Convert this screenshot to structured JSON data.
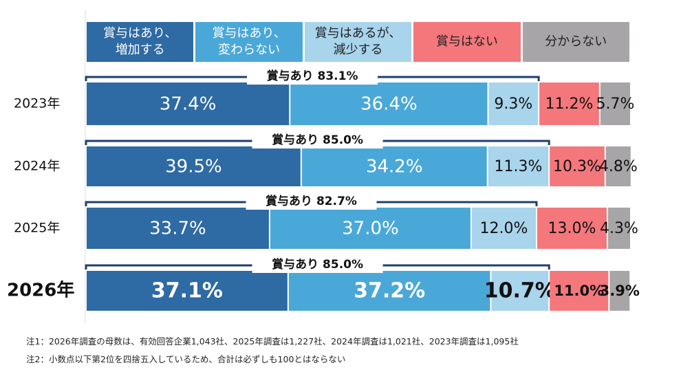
{
  "chart_data": {
    "type": "stacked-bar-horizontal",
    "categories": [
      "2023年",
      "2024年",
      "2025年",
      "2026年"
    ],
    "xlim": [
      0,
      100
    ],
    "series": [
      {
        "name": "賞与はあり、\n増加する",
        "color": "#2e6aa3",
        "values": [
          37.4,
          39.5,
          33.7,
          37.1
        ],
        "value_labels": [
          "37.4%",
          "39.5%",
          "33.7%",
          "37.1%"
        ]
      },
      {
        "name": "賞与はあり、\n変わらない",
        "color": "#4aa8d8",
        "values": [
          36.4,
          34.2,
          37.0,
          37.2
        ],
        "value_labels": [
          "36.4%",
          "34.2%",
          "37.0%",
          "37.2%"
        ]
      },
      {
        "name": "賞与はあるが、\n減少する",
        "color": "#a8d4ec",
        "values": [
          9.3,
          11.3,
          12.0,
          10.7
        ],
        "value_labels": [
          "9.3%",
          "11.3%",
          "12.0%",
          "10.7%"
        ]
      },
      {
        "name": "賞与はない",
        "color": "#f4777c",
        "values": [
          11.2,
          10.3,
          13.0,
          11.0
        ],
        "value_labels": [
          "11.2%",
          "10.3%",
          "13.0%",
          "11.0%"
        ]
      },
      {
        "name": "分からない",
        "color": "#a7a5a8",
        "values": [
          5.7,
          4.8,
          4.3,
          3.9
        ],
        "value_labels": [
          "5.7%",
          "4.8%",
          "4.3%",
          "3.9%"
        ]
      }
    ],
    "annotations": [
      {
        "text": "賞与あり 83.1%",
        "value": 83.1
      },
      {
        "text": "賞与あり 85.0%",
        "value": 85.0
      },
      {
        "text": "賞与あり 82.7%",
        "value": 82.7
      },
      {
        "text": "賞与あり 85.0%",
        "value": 85.0
      }
    ],
    "notes": [
      "注1：2026年調査の母数は、有効回答企業1,043社、2025年調査は1,227社、2024年調査は1,021社、2023年調査は1,095社",
      "注2：小数点以下第2位を四捨五入しているため、合計は必ずしも100とはならない"
    ]
  }
}
